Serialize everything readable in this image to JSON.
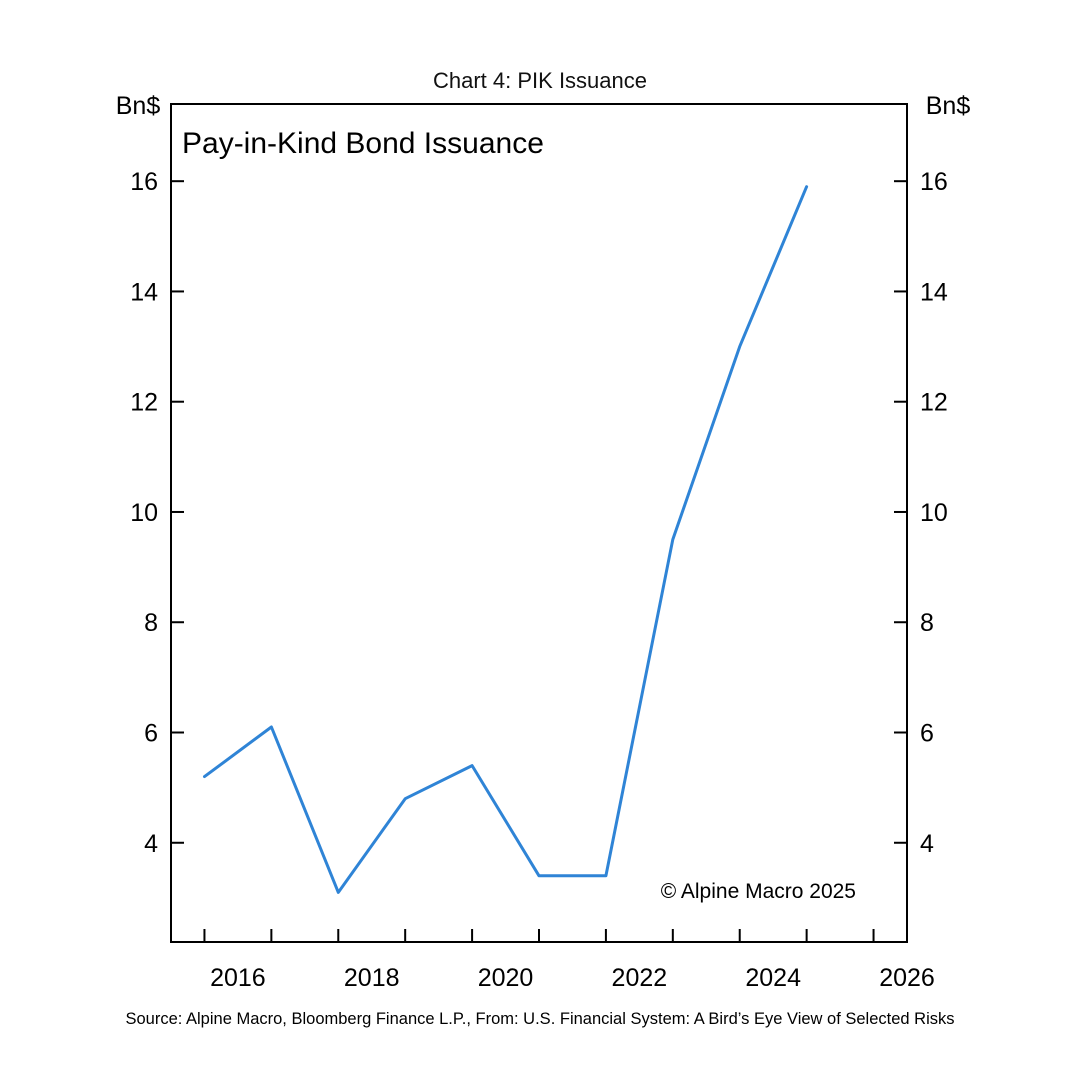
{
  "chart_data": {
    "type": "line",
    "title": "Chart 4: PIK Issuance",
    "subtitle": "Pay-in-Kind Bond Issuance",
    "left_unit": "Bn$",
    "right_unit": "Bn$",
    "xlim": [
      2015.0,
      2026.0
    ],
    "ylim": [
      2.2,
      17.4
    ],
    "x_ticks": [
      2016,
      2018,
      2020,
      2022,
      2024,
      2026
    ],
    "y_ticks": [
      4,
      6,
      8,
      10,
      12,
      14,
      16
    ],
    "series": [
      {
        "color": "#2f84d6",
        "x": [
          2015.5,
          2016.5,
          2017.5,
          2018.5,
          2019.5,
          2020.5,
          2021.5,
          2022.5,
          2023.5,
          2024.5
        ],
        "values": [
          5.2,
          6.1,
          3.1,
          4.8,
          5.4,
          3.4,
          3.4,
          9.5,
          13.0,
          15.9
        ]
      }
    ],
    "grid": false,
    "legend": "none",
    "copyright": "© Alpine Macro 2025",
    "source": "Source:  Alpine Macro, Bloomberg Finance L.P., From:  U.S. Financial System: A Bird’s Eye View of Selected Risks"
  }
}
